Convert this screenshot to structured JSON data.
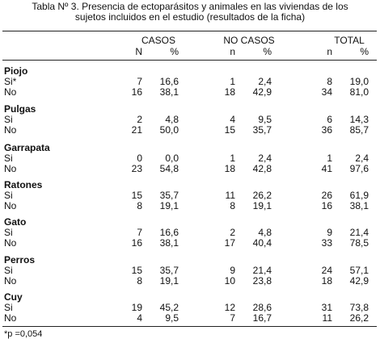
{
  "title": [
    "Tabla Nº 3. Presencia de ectoparásitos y animales en las viviendas de los",
    "sujetos incluidos en el estudio (resultados de la ficha)"
  ],
  "header": {
    "groups": [
      "CASOS",
      "NO CASOS",
      "TOTAL"
    ],
    "subheaders": [
      "N",
      "%",
      "n",
      "%",
      "n",
      "%"
    ]
  },
  "sections": [
    {
      "name": "Piojo",
      "rows": [
        {
          "label": "Si*",
          "values": [
            "7",
            "16,6",
            "1",
            "2,4",
            "8",
            "19,0"
          ]
        },
        {
          "label": "No",
          "values": [
            "16",
            "38,1",
            "18",
            "42,9",
            "34",
            "81,0"
          ]
        }
      ]
    },
    {
      "name": "Pulgas",
      "rows": [
        {
          "label": "Si",
          "values": [
            "2",
            "4,8",
            "4",
            "9,5",
            "6",
            "14,3"
          ]
        },
        {
          "label": "No",
          "values": [
            "21",
            "50,0",
            "15",
            "35,7",
            "36",
            "85,7"
          ]
        }
      ]
    },
    {
      "name": "Garrapata",
      "rows": [
        {
          "label": "Si",
          "values": [
            "0",
            "0,0",
            "1",
            "2,4",
            "1",
            "2,4"
          ]
        },
        {
          "label": "No",
          "values": [
            "23",
            "54,8",
            "18",
            "42,8",
            "41",
            "97,6"
          ]
        }
      ]
    },
    {
      "name": "Ratones",
      "rows": [
        {
          "label": "Si",
          "values": [
            "15",
            "35,7",
            "11",
            "26,2",
            "26",
            "61,9"
          ]
        },
        {
          "label": "No",
          "values": [
            "8",
            "19,1",
            "8",
            "19,1",
            "16",
            "38,1"
          ]
        }
      ]
    },
    {
      "name": "Gato",
      "rows": [
        {
          "label": "Si",
          "values": [
            "7",
            "16,6",
            "2",
            "4,8",
            "9",
            "21,4"
          ]
        },
        {
          "label": "No",
          "values": [
            "16",
            "38,1",
            "17",
            "40,4",
            "33",
            "78,5"
          ]
        }
      ]
    },
    {
      "name": "Perros",
      "rows": [
        {
          "label": "Si",
          "values": [
            "15",
            "35,7",
            "9",
            "21,4",
            "24",
            "57,1"
          ]
        },
        {
          "label": "No",
          "values": [
            "8",
            "19,1",
            "10",
            "23,8",
            "18",
            "42,9"
          ]
        }
      ]
    },
    {
      "name": "Cuy",
      "rows": [
        {
          "label": "Si",
          "values": [
            "19",
            "45,2",
            "12",
            "28,6",
            "31",
            "73,8"
          ]
        },
        {
          "label": "No",
          "values": [
            "4",
            "9,5",
            "7",
            "16,7",
            "11",
            "26,2"
          ]
        }
      ]
    }
  ],
  "footnote": "*p =0,054"
}
